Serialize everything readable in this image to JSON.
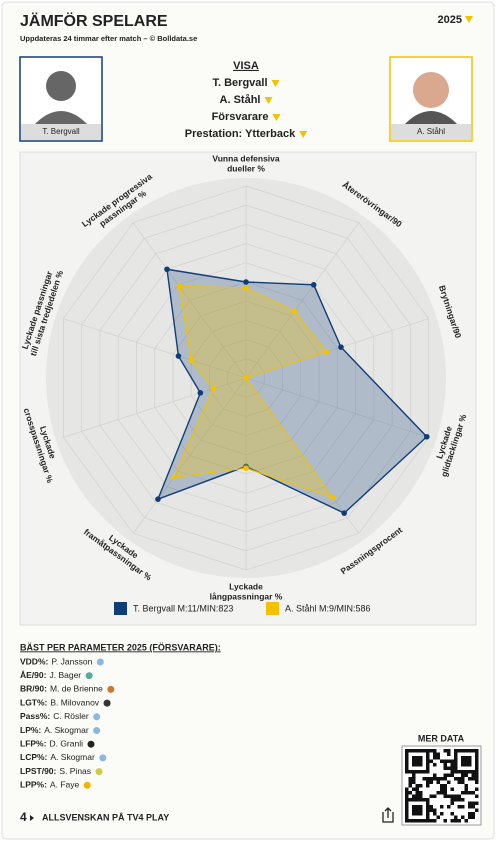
{
  "header": {
    "title": "JÄMFÖR SPELARE",
    "subtitle": "Uppdateras 24 timmar efter match – © Bolldata.se",
    "season": "2025"
  },
  "players": {
    "left": "T. Bergvall",
    "right": "A. Ståhl"
  },
  "menu": {
    "title": "VISA",
    "items": [
      "T. Bergvall",
      "A. Ståhl",
      "Försvarare",
      "Prestation: Ytterback"
    ]
  },
  "chart_data": {
    "type": "radar",
    "axes": [
      [
        "Vunna defensiva",
        "dueller %"
      ],
      [
        "Återerövringar/90"
      ],
      [
        "Brytningar/90"
      ],
      [
        "Lyckade",
        "glidtacklingar %"
      ],
      [
        "Passningsprocent"
      ],
      [
        "Lyckade",
        "långpassningar %"
      ],
      [
        "Lyckade",
        "framåtpassningar %"
      ],
      [
        "Lyckade",
        "crosspassningar %"
      ],
      [
        "Lyckade passningar",
        "till sista tredjedelen %"
      ],
      [
        "Lyckade progressiva",
        "passningar %"
      ]
    ],
    "rlim": [
      0,
      100
    ],
    "rticks": [
      10,
      20,
      30,
      40,
      50,
      60,
      70,
      80,
      90,
      100
    ],
    "series": [
      {
        "name": "T. Bergvall M:11/MIN:823",
        "color": "#0f3d78",
        "values": [
          50,
          60,
          52,
          99,
          87,
          46,
          78,
          25,
          37,
          70
        ]
      },
      {
        "name": "A. Ståhl M:9/MIN:586",
        "color": "#f2c200",
        "values": [
          47,
          43,
          44,
          0,
          77,
          47,
          64,
          18,
          30,
          59
        ]
      }
    ]
  },
  "best": {
    "title": "BÄST PER PARAMETER 2025 (FÖRSVARARE):",
    "rows": [
      [
        "VDD%:",
        "P. Jansson"
      ],
      [
        "ÅE/90:",
        "J. Bager"
      ],
      [
        "BR/90:",
        "M. de Brienne"
      ],
      [
        "LGT%:",
        "B. Milovanov"
      ],
      [
        "Pass%:",
        "C. Rösler"
      ],
      [
        "LP%:",
        "A. Skogmar"
      ],
      [
        "LFP%:",
        "D. Granli"
      ],
      [
        "LCP%:",
        "A. Skogmar"
      ],
      [
        "LPST/90:",
        "S. Pinas"
      ],
      [
        "LPP%:",
        "A. Faye"
      ]
    ]
  },
  "qr": {
    "title": "MER DATA"
  },
  "footer": {
    "logo": "4",
    "text": "ALLSVENSKAN PÅ TV4 PLAY"
  }
}
